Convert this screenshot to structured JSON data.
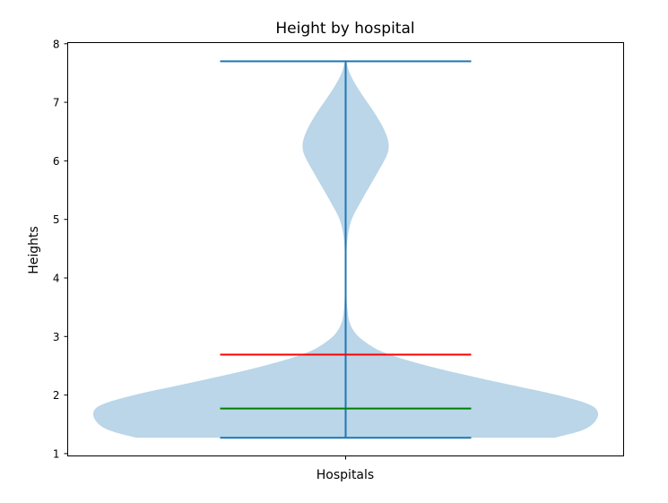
{
  "chart_data": {
    "type": "violin",
    "title": "Height by hospital",
    "xlabel": "Hospitals",
    "ylabel": "Heights",
    "ylim": [
      0.96,
      8.02
    ],
    "yticks": [
      1,
      2,
      3,
      4,
      5,
      6,
      7,
      8
    ],
    "grid": false,
    "legend": "none",
    "violin": {
      "min": 1.27,
      "max": 7.7,
      "median": 1.77,
      "mean": 2.69,
      "density": [
        [
          1.27,
          0.83
        ],
        [
          1.4,
          0.94
        ],
        [
          1.55,
          0.99
        ],
        [
          1.72,
          1.0
        ],
        [
          1.85,
          0.96
        ],
        [
          2.0,
          0.84
        ],
        [
          2.15,
          0.68
        ],
        [
          2.3,
          0.52
        ],
        [
          2.45,
          0.37
        ],
        [
          2.6,
          0.24
        ],
        [
          2.75,
          0.14
        ],
        [
          2.9,
          0.08
        ],
        [
          3.05,
          0.04
        ],
        [
          3.25,
          0.015
        ],
        [
          3.5,
          0.006
        ],
        [
          3.8,
          0.003
        ],
        [
          4.1,
          0.002
        ],
        [
          4.4,
          0.003
        ],
        [
          4.7,
          0.008
        ],
        [
          5.0,
          0.024
        ],
        [
          5.3,
          0.06
        ],
        [
          5.6,
          0.1
        ],
        [
          5.9,
          0.14
        ],
        [
          6.1,
          0.164
        ],
        [
          6.25,
          0.171
        ],
        [
          6.4,
          0.165
        ],
        [
          6.6,
          0.145
        ],
        [
          6.85,
          0.11
        ],
        [
          7.1,
          0.07
        ],
        [
          7.3,
          0.04
        ],
        [
          7.5,
          0.016
        ],
        [
          7.7,
          0.002
        ]
      ]
    },
    "colors": {
      "body": "#bad6e8",
      "extrema": "#1f77b4",
      "median": "#008000",
      "mean": "#ff0000"
    }
  }
}
